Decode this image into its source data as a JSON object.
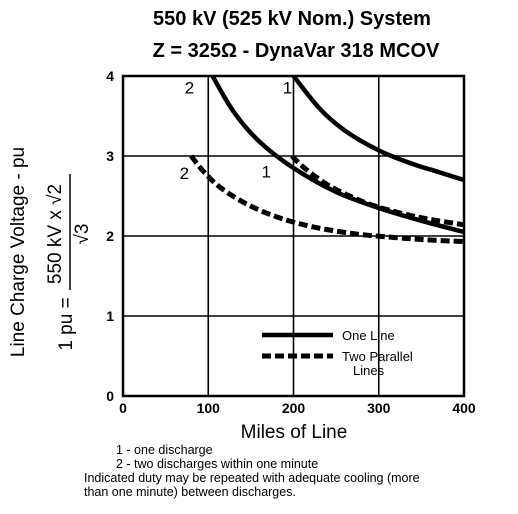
{
  "chart_data": {
    "type": "line",
    "title": "550 kV (525 kV Nom.) System",
    "subtitle": "Z = 325Ω - DynaVar 318 MCOV",
    "xlabel": "Miles of Line",
    "ylabel": "Line Charge Voltage - pu",
    "pu_definition": {
      "lhs": "1 pu =",
      "numerator": "550 kV x √2",
      "denominator": "√3"
    },
    "xlim": [
      0,
      400
    ],
    "ylim": [
      0,
      4
    ],
    "x_ticks": [
      "0",
      "100",
      "200",
      "300",
      "400"
    ],
    "y_ticks": [
      "0",
      "1",
      "2",
      "3",
      "4"
    ],
    "grid": true,
    "legend_position": "bottom-right",
    "legend": [
      {
        "label": "One Line",
        "style": "solid"
      },
      {
        "label": "Two Parallel Lines",
        "style": "dashed"
      }
    ],
    "series": [
      {
        "line_type": "One Line",
        "curve_label": "1",
        "points": [
          [
            200,
            4.0
          ],
          [
            230,
            3.6
          ],
          [
            260,
            3.32
          ],
          [
            300,
            3.07
          ],
          [
            340,
            2.9
          ],
          [
            370,
            2.8
          ],
          [
            400,
            2.7
          ]
        ]
      },
      {
        "line_type": "One Line",
        "curve_label": "2",
        "points": [
          [
            105,
            4.0
          ],
          [
            130,
            3.55
          ],
          [
            160,
            3.18
          ],
          [
            200,
            2.85
          ],
          [
            250,
            2.55
          ],
          [
            300,
            2.35
          ],
          [
            350,
            2.19
          ],
          [
            400,
            2.05
          ]
        ]
      },
      {
        "line_type": "Two Parallel Lines",
        "curve_label": "1",
        "points": [
          [
            198,
            3.0
          ],
          [
            215,
            2.83
          ],
          [
            240,
            2.64
          ],
          [
            270,
            2.48
          ],
          [
            300,
            2.36
          ],
          [
            340,
            2.25
          ],
          [
            370,
            2.19
          ],
          [
            400,
            2.14
          ]
        ]
      },
      {
        "line_type": "Two Parallel Lines",
        "curve_label": "2",
        "points": [
          [
            80,
            3.0
          ],
          [
            95,
            2.8
          ],
          [
            115,
            2.6
          ],
          [
            145,
            2.4
          ],
          [
            180,
            2.24
          ],
          [
            220,
            2.12
          ],
          [
            270,
            2.03
          ],
          [
            320,
            1.98
          ],
          [
            360,
            1.95
          ],
          [
            400,
            1.93
          ]
        ]
      }
    ],
    "annotations": [
      {
        "text": "2",
        "x": 78,
        "y": 3.78
      },
      {
        "text": "1",
        "x": 193,
        "y": 3.78
      },
      {
        "text": "2",
        "x": 72,
        "y": 2.71
      },
      {
        "text": "1",
        "x": 168,
        "y": 2.73
      }
    ]
  },
  "notes": [
    "1 - one discharge",
    "2 - two discharges within one minute",
    "Indicated duty may be repeated with adequate cooling (more",
    "than one minute) between discharges."
  ]
}
